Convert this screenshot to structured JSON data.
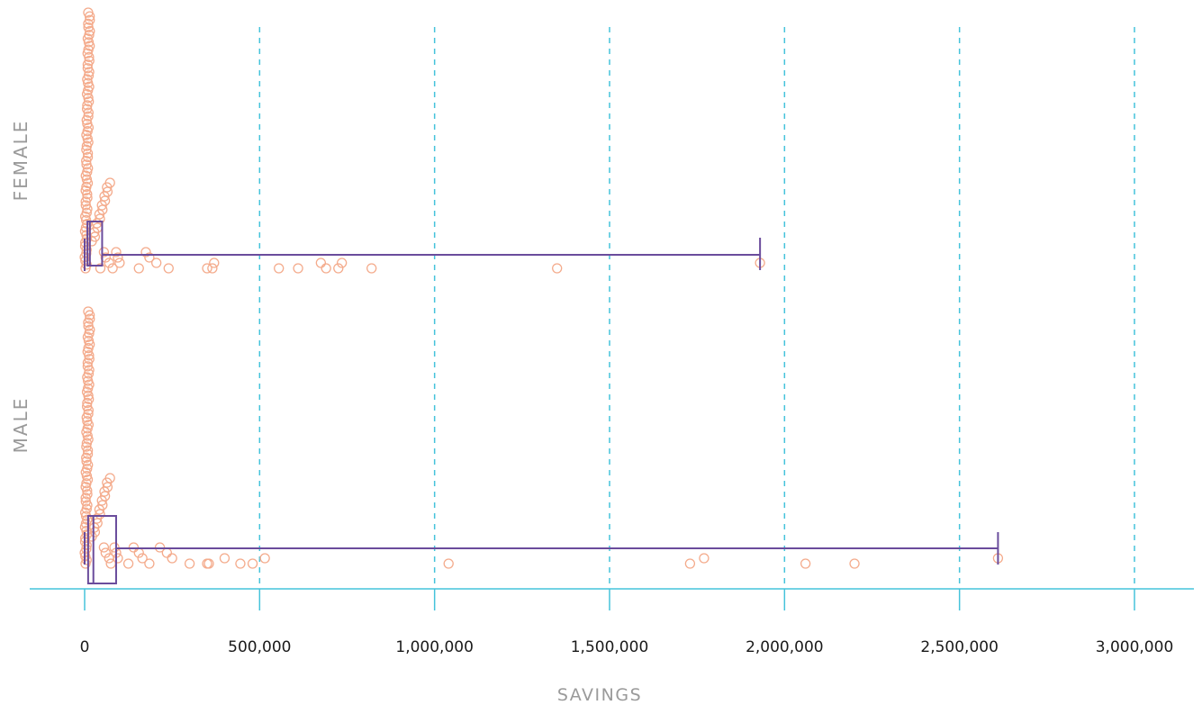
{
  "chart_data": {
    "type": "box",
    "orientation": "horizontal",
    "xlabel": "SAVINGS",
    "xlim": [
      0,
      3000000
    ],
    "x_ticks": [
      0,
      500000,
      1000000,
      1500000,
      2000000,
      2500000,
      3000000
    ],
    "x_tick_labels": [
      "0",
      "500,000",
      "1,000,000",
      "1,500,000",
      "2,000,000",
      "2,500,000",
      "3,000,000"
    ],
    "grid": "vertical dashed",
    "groups": [
      {
        "label": "FEMALE",
        "box": {
          "min": 0,
          "q1": 8000,
          "median": 15000,
          "q3": 50000,
          "max": 1930000
        },
        "outliers": [
          1930000,
          1350000,
          820000,
          735000,
          725000,
          690000,
          675000,
          610000,
          555000,
          370000,
          365000,
          350000,
          240000,
          205000,
          185000,
          175000,
          155000,
          100000,
          95000,
          90000,
          80000,
          70000,
          60000,
          55000,
          45000
        ]
      },
      {
        "label": "MALE",
        "box": {
          "min": 0,
          "q1": 10000,
          "median": 25000,
          "q3": 90000,
          "max": 2610000
        },
        "outliers": [
          2610000,
          2200000,
          2060000,
          1770000,
          1730000,
          1040000,
          515000,
          480000,
          445000,
          400000,
          355000,
          350000,
          300000,
          250000,
          235000,
          215000,
          185000,
          165000,
          155000,
          140000,
          125000,
          95000,
          90000,
          85000,
          75000,
          70000,
          60000,
          55000
        ]
      }
    ],
    "colors": {
      "box": "#6a4c9c",
      "points": "#f4ab8c",
      "grid": "#45c3db",
      "axis": "#45c3db"
    }
  }
}
